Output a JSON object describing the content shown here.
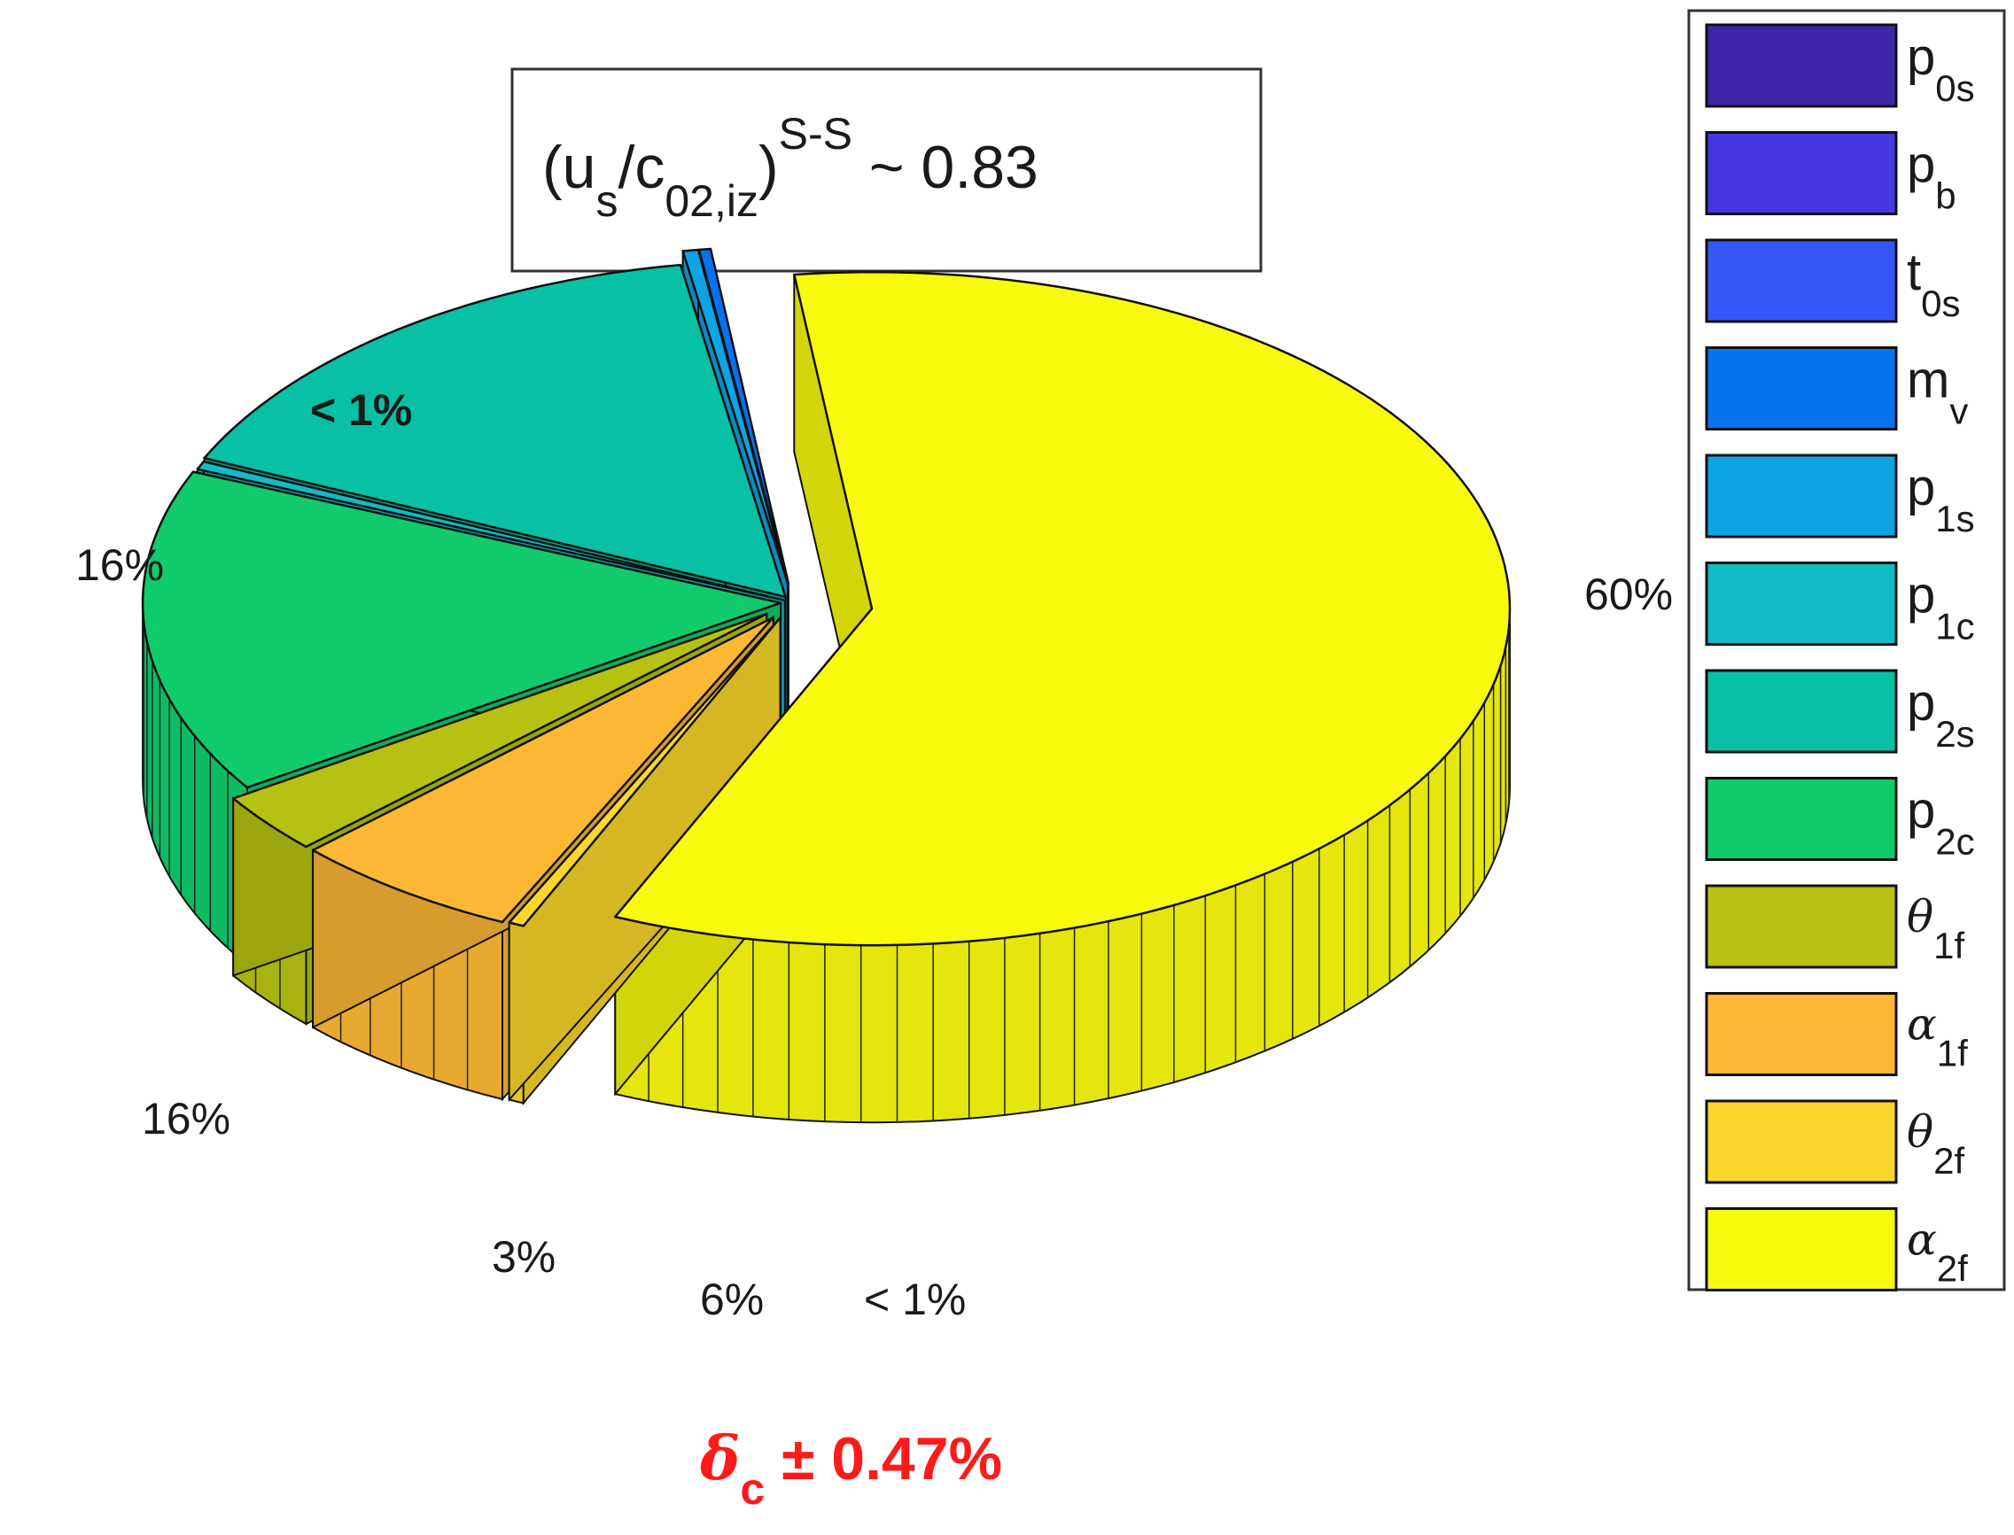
{
  "chart_data": {
    "type": "pie",
    "style": "3d-exploded",
    "title": {
      "base_open": "(u",
      "base_sub1": "s",
      "slash": "/c",
      "base_sub2": "02,iz",
      "close": ")",
      "superscript": "S-S",
      "suffix": " ~ 0.83"
    },
    "slices": [
      {
        "key": "alpha2f",
        "value": 60,
        "label": "60%",
        "color": "#f8fa0d"
      },
      {
        "key": "theta2f",
        "value": 0.4,
        "label": "< 1%",
        "color": "#fad72a"
      },
      {
        "key": "alpha1f",
        "value": 6,
        "label": "6%",
        "color": "#fcb835"
      },
      {
        "key": "theta1f",
        "value": 3,
        "label": "3%",
        "color": "#b7c111"
      },
      {
        "key": "p2c",
        "value": 16,
        "label": "16%",
        "color": "#0fcb6c"
      },
      {
        "key": "p1c",
        "value": 0.4,
        "label": "",
        "color": "#11bcc4"
      },
      {
        "key": "p2s",
        "value": 16,
        "label": "16%",
        "color": "#08c0a4"
      },
      {
        "key": "p1s",
        "value": 0.4,
        "label": "< 1%",
        "color": "#0ea3e2"
      },
      {
        "key": "mv",
        "value": 0.3,
        "label": "",
        "color": "#0672ee"
      }
    ],
    "legend": {
      "placement": "right",
      "entries": [
        {
          "main": "p",
          "sub": "0s",
          "symbol": false,
          "color": "#3e25aa"
        },
        {
          "main": "p",
          "sub": "b",
          "symbol": false,
          "color": "#4538e2"
        },
        {
          "main": "t",
          "sub": "0s",
          "symbol": false,
          "color": "#3657f8"
        },
        {
          "main": "m",
          "sub": "v",
          "symbol": false,
          "color": "#0672ee"
        },
        {
          "main": "p",
          "sub": "1s",
          "symbol": false,
          "color": "#0ea3e2"
        },
        {
          "main": "p",
          "sub": "1c",
          "symbol": false,
          "color": "#11bcc4"
        },
        {
          "main": "p",
          "sub": "2s",
          "symbol": false,
          "color": "#08c0a4"
        },
        {
          "main": "p",
          "sub": "2c",
          "symbol": false,
          "color": "#0fcb6c"
        },
        {
          "main": "θ",
          "sub": "1f",
          "symbol": true,
          "color": "#b7c111"
        },
        {
          "main": "α",
          "sub": "1f",
          "symbol": true,
          "color": "#fcb835"
        },
        {
          "main": "θ",
          "sub": "2f",
          "symbol": true,
          "color": "#fad72a"
        },
        {
          "main": "α",
          "sub": "2f",
          "symbol": true,
          "color": "#f8fa0d"
        }
      ]
    },
    "annotation": {
      "symbol": "δ",
      "sub": "c",
      "text": " ± 0.47%",
      "color": "#ff1a1a"
    }
  }
}
